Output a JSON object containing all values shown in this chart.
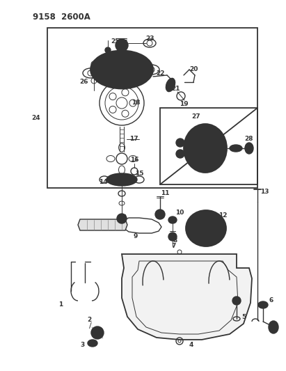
{
  "title": "9158  2600A",
  "bg_color": "#ffffff",
  "lc": "#333333",
  "fig_width": 4.11,
  "fig_height": 5.33,
  "dpi": 100
}
